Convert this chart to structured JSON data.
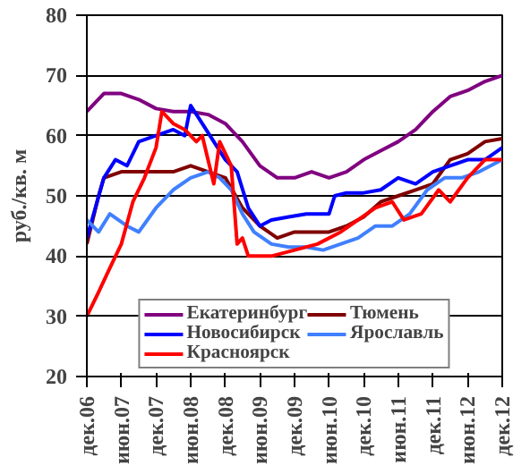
{
  "chart_data": {
    "type": "line",
    "ylabel": "руб./кв. м",
    "xlim": [
      "2006-12",
      "2012-12"
    ],
    "ylim": [
      20,
      80
    ],
    "xticks": [
      {
        "value": "2006-12",
        "label": "дек.06"
      },
      {
        "value": "2007-06",
        "label": "июн.07"
      },
      {
        "value": "2007-12",
        "label": "дек.07"
      },
      {
        "value": "2008-06",
        "label": "июн.08"
      },
      {
        "value": "2008-12",
        "label": "дек.08"
      },
      {
        "value": "2009-06",
        "label": "июн.09"
      },
      {
        "value": "2009-12",
        "label": "дек.09"
      },
      {
        "value": "2010-06",
        "label": "июн.10"
      },
      {
        "value": "2010-12",
        "label": "дек.10"
      },
      {
        "value": "2011-06",
        "label": "июн.11"
      },
      {
        "value": "2011-12",
        "label": "дек.11"
      },
      {
        "value": "2012-06",
        "label": "июн.12"
      },
      {
        "value": "2012-12",
        "label": "дек.12"
      }
    ],
    "yticks": [
      20,
      30,
      40,
      50,
      60,
      70,
      80
    ],
    "grid": "y",
    "legend": "bottom",
    "marker": "none",
    "line_style": "solid",
    "series": [
      {
        "name": "Екатеринбург",
        "color": "#800080",
        "x": [
          "2006-12",
          "2007-03",
          "2007-06",
          "2007-09",
          "2007-12",
          "2008-03",
          "2008-06",
          "2008-09",
          "2008-12",
          "2009-03",
          "2009-06",
          "2009-09",
          "2009-12",
          "2010-03",
          "2010-06",
          "2010-09",
          "2010-12",
          "2011-03",
          "2011-06",
          "2011-09",
          "2011-12",
          "2012-03",
          "2012-06",
          "2012-09",
          "2012-12"
        ],
        "values": [
          64,
          67,
          67,
          66,
          64.5,
          64,
          64,
          63.5,
          62,
          59,
          55,
          53,
          53,
          54,
          53,
          54,
          56,
          57.5,
          59,
          61,
          64,
          66.5,
          67.5,
          69,
          70
        ]
      },
      {
        "name": "Тюмень",
        "color": "#800000",
        "x": [
          "2006-12",
          "2007-02",
          "2007-03",
          "2007-06",
          "2007-09",
          "2007-12",
          "2008-03",
          "2008-06",
          "2008-09",
          "2008-12",
          "2009-03",
          "2009-06",
          "2009-09",
          "2009-12",
          "2010-03",
          "2010-06",
          "2010-09",
          "2010-12",
          "2011-03",
          "2011-06",
          "2011-09",
          "2011-12",
          "2012-03",
          "2012-06",
          "2012-09",
          "2012-12"
        ],
        "values": [
          42,
          50,
          53,
          54,
          54,
          54,
          54,
          55,
          54,
          53,
          48,
          45,
          43,
          44,
          44,
          44,
          45,
          46.5,
          49,
          50,
          51,
          52,
          56,
          57,
          59,
          59.5
        ]
      },
      {
        "name": "Новосибирск",
        "color": "#0000ff",
        "x": [
          "2006-12",
          "2007-03",
          "2007-05",
          "2007-07",
          "2007-09",
          "2007-12",
          "2008-03",
          "2008-05",
          "2008-06",
          "2008-08",
          "2008-10",
          "2008-12",
          "2009-02",
          "2009-04",
          "2009-06",
          "2009-08",
          "2009-11",
          "2010-02",
          "2010-04",
          "2010-06",
          "2010-07",
          "2010-09",
          "2010-12",
          "2011-03",
          "2011-06",
          "2011-09",
          "2011-12",
          "2012-03",
          "2012-06",
          "2012-09",
          "2012-12"
        ],
        "values": [
          43,
          53,
          56,
          55,
          59,
          60,
          61,
          60,
          65,
          62,
          59,
          56,
          54,
          48,
          45,
          46,
          46.5,
          47,
          47,
          47,
          50,
          50.5,
          50.5,
          51,
          53,
          52,
          54,
          55,
          56,
          56,
          58
        ]
      },
      {
        "name": "Ярославль",
        "color": "#4080ff",
        "x": [
          "2006-12",
          "2007-02",
          "2007-04",
          "2007-07",
          "2007-09",
          "2007-12",
          "2008-03",
          "2008-06",
          "2008-09",
          "2008-11",
          "2009-01",
          "2009-03",
          "2009-05",
          "2009-08",
          "2009-11",
          "2010-02",
          "2010-05",
          "2010-08",
          "2010-11",
          "2011-02",
          "2011-05",
          "2011-08",
          "2011-11",
          "2012-02",
          "2012-05",
          "2012-08",
          "2012-12"
        ],
        "values": [
          46,
          44,
          47,
          45,
          44,
          48,
          51,
          53,
          54,
          53,
          51,
          47,
          44,
          42,
          41.5,
          41.5,
          41,
          42,
          43,
          45,
          45,
          47,
          51,
          53,
          53,
          54,
          56
        ]
      },
      {
        "name": "Красноярск",
        "color": "#ff0000",
        "x": [
          "2006-12",
          "2007-02",
          "2007-04",
          "2007-06",
          "2007-08",
          "2007-10",
          "2007-12",
          "2008-01",
          "2008-03",
          "2008-05",
          "2008-07",
          "2008-08",
          "2008-10",
          "2008-11",
          "2009-01",
          "2009-02",
          "2009-03",
          "2009-04",
          "2009-08",
          "2009-12",
          "2010-04",
          "2010-08",
          "2010-11",
          "2011-02",
          "2011-05",
          "2011-07",
          "2011-10",
          "2012-01",
          "2012-03",
          "2012-06",
          "2012-09",
          "2012-12"
        ],
        "values": [
          30,
          34,
          38,
          42,
          49,
          53,
          58,
          64,
          62,
          61,
          59,
          60,
          52,
          59,
          55,
          42,
          43,
          40,
          40,
          41,
          42,
          44,
          46,
          48,
          49,
          46,
          47,
          51,
          49,
          53,
          56,
          56
        ]
      }
    ]
  }
}
